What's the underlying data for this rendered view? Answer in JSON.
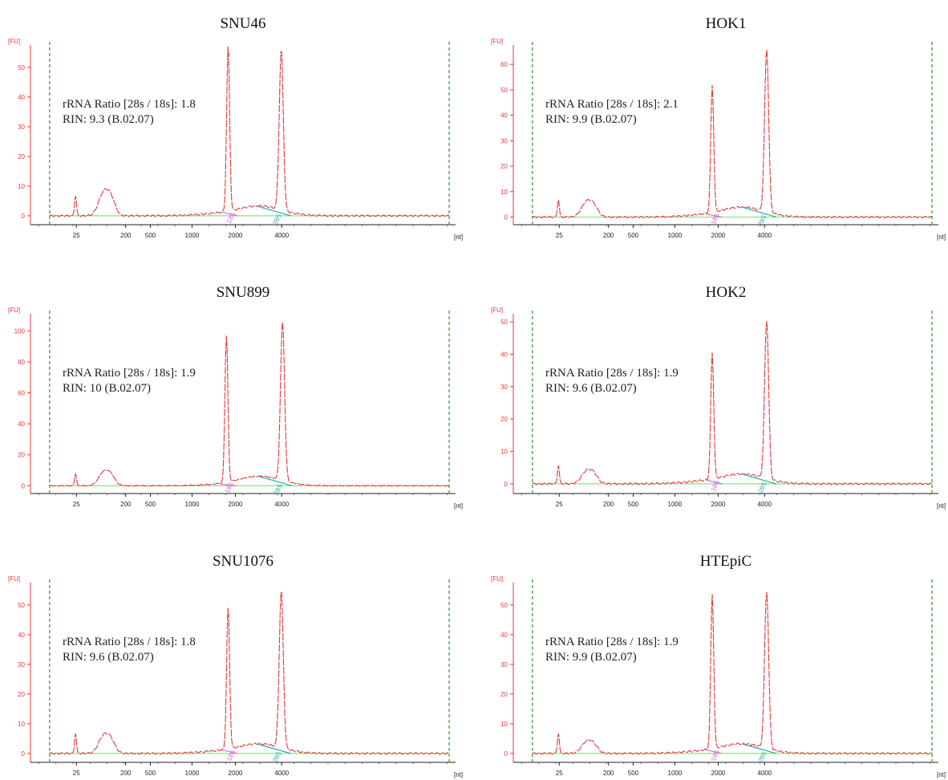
{
  "chart_data": [
    {
      "type": "line",
      "title": "SNU46",
      "y_unit": "[FU]",
      "x_unit": "[nt]",
      "ylim": [
        -3,
        57
      ],
      "yticks": [
        0,
        10,
        20,
        30,
        40,
        50
      ],
      "x_tick_labels": [
        "25",
        "200",
        "500",
        "1000",
        "2000",
        "4000"
      ],
      "annotation": [
        "rRNA Ratio [28s / 18s]: 1.8",
        "RIN: 9.3 (B.02.07)"
      ],
      "marker_labels": [
        "18S",
        "28S"
      ],
      "peaks": {
        "marker": 7,
        "small_rna": 8,
        "18S": 56,
        "28S": 54
      }
    },
    {
      "type": "line",
      "title": "HOK1",
      "y_unit": "[FU]",
      "x_unit": "[nt]",
      "ylim": [
        -3,
        67
      ],
      "yticks": [
        0,
        10,
        20,
        30,
        40,
        50,
        60
      ],
      "x_tick_labels": [
        "25",
        "200",
        "500",
        "1000",
        "2000",
        "4000"
      ],
      "annotation": [
        "rRNA Ratio [28s / 18s]: 2.1",
        "RIN: 9.9 (B.02.07)"
      ],
      "marker_labels": [
        "18S",
        "28S"
      ],
      "peaks": {
        "marker": 7,
        "small_rna": 6,
        "18S": 50,
        "28S": 64
      }
    },
    {
      "type": "line",
      "title": "SNU899",
      "y_unit": "[FU]",
      "x_unit": "[nt]",
      "ylim": [
        -5,
        110
      ],
      "yticks": [
        0,
        20,
        40,
        60,
        80,
        100
      ],
      "x_tick_labels": [
        "25",
        "200",
        "500",
        "1000",
        "2000",
        "4000"
      ],
      "annotation": [
        "rRNA Ratio [28s / 18s]: 1.9",
        "RIN: 10 (B.02.07)"
      ],
      "marker_labels": [
        "18S",
        "28S"
      ],
      "peaks": {
        "marker": 8,
        "small_rna": 9,
        "18S": 95,
        "28S": 102
      }
    },
    {
      "type": "line",
      "title": "HOK2",
      "y_unit": "[FU]",
      "x_unit": "[nt]",
      "ylim": [
        -3,
        52
      ],
      "yticks": [
        0,
        10,
        20,
        30,
        40,
        50
      ],
      "x_tick_labels": [
        "25",
        "200",
        "500",
        "1000",
        "2000",
        "4000"
      ],
      "annotation": [
        "rRNA Ratio [28s / 18s]: 1.9",
        "RIN: 9.6 (B.02.07)"
      ],
      "marker_labels": [
        "18S",
        "28S"
      ],
      "peaks": {
        "marker": 6,
        "small_rna": 4,
        "18S": 39,
        "28S": 49
      }
    },
    {
      "type": "line",
      "title": "SNU1076",
      "y_unit": "[FU]",
      "x_unit": "[nt]",
      "ylim": [
        -3,
        57
      ],
      "yticks": [
        0,
        10,
        20,
        30,
        40,
        50
      ],
      "x_tick_labels": [
        "25",
        "200",
        "500",
        "1000",
        "2000",
        "4000"
      ],
      "annotation": [
        "rRNA Ratio [28s / 18s]: 1.8",
        "RIN: 9.6 (B.02.07)"
      ],
      "marker_labels": [
        "18S",
        "28S"
      ],
      "peaks": {
        "marker": 7,
        "small_rna": 6,
        "18S": 48,
        "28S": 53
      }
    },
    {
      "type": "line",
      "title": "HTEpiC",
      "y_unit": "[FU]",
      "x_unit": "[nt]",
      "ylim": [
        -3,
        57
      ],
      "yticks": [
        0,
        10,
        20,
        30,
        40,
        50
      ],
      "x_tick_labels": [
        "25",
        "200",
        "500",
        "1000",
        "2000",
        "4000"
      ],
      "annotation": [
        "rRNA Ratio [28s / 18s]: 1.9",
        "RIN: 9.9 (B.02.07)"
      ],
      "marker_labels": [
        "18S",
        "28S"
      ],
      "peaks": {
        "marker": 7,
        "small_rna": 4,
        "18S": 52,
        "28S": 53
      }
    }
  ],
  "colors": {
    "trace": "#e0393b",
    "marker_line": "#3a9e3a",
    "baseline": "#8ee08e",
    "label_18s": "#d66ad6",
    "label_28s": "#2aa8a8",
    "axis_red": "#e0393b",
    "axis_black": "#222222"
  }
}
